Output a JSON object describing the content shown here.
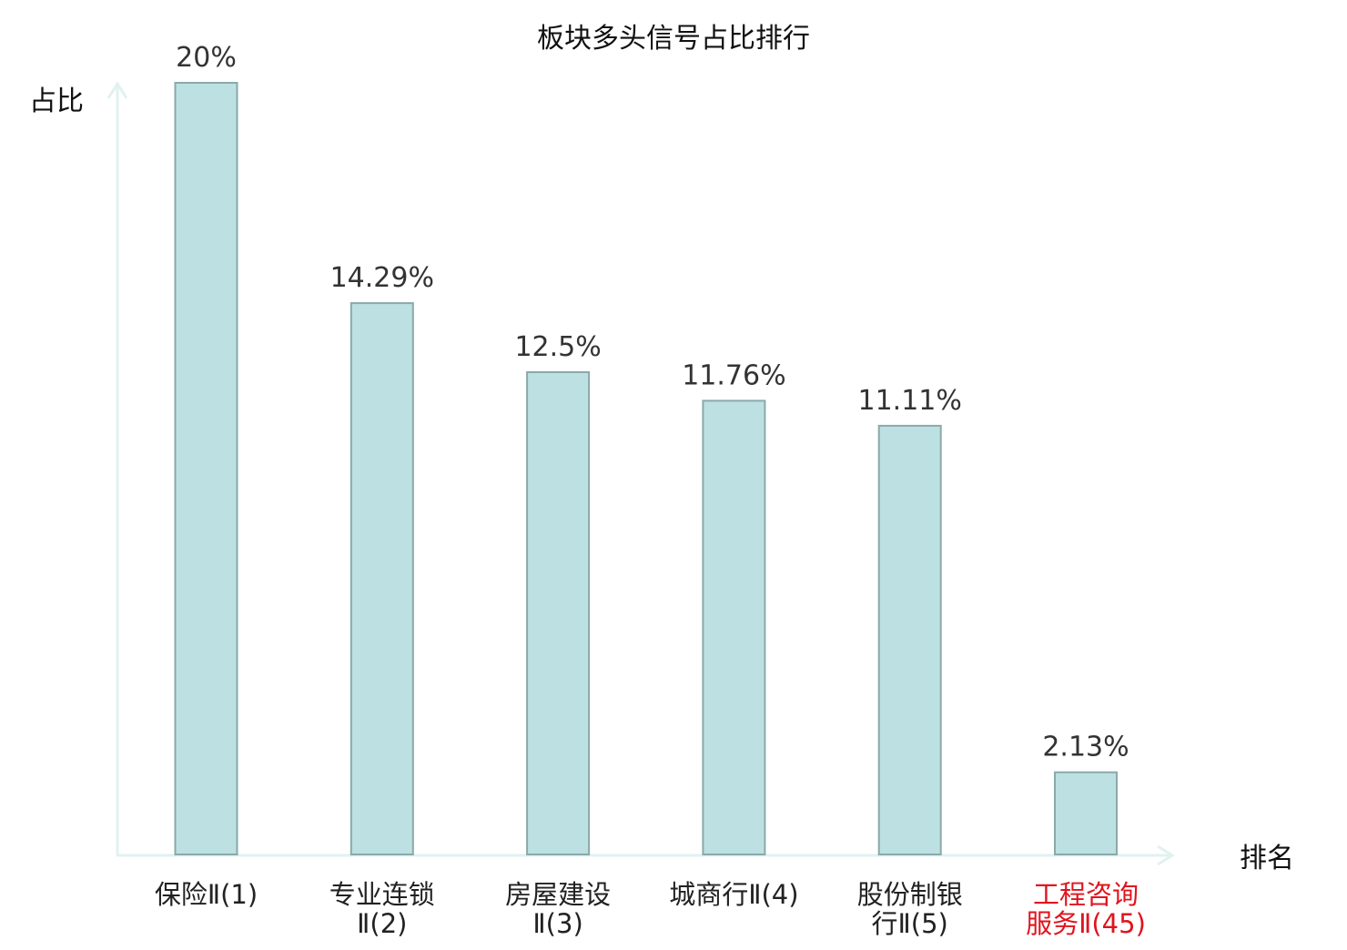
{
  "chart_data": {
    "type": "bar",
    "title": "板块多头信号占比排行",
    "ylabel": "占比",
    "xlabel": "排名",
    "ylim": [
      0,
      20
    ],
    "grid": false,
    "legend": "none",
    "categories": [
      [
        "保险Ⅱ(1)"
      ],
      [
        "专业连锁",
        "Ⅱ(2)"
      ],
      [
        "房屋建设",
        "Ⅱ(3)"
      ],
      [
        "城商行Ⅱ(4)"
      ],
      [
        "股份制银",
        "行Ⅱ(5)"
      ],
      [
        "工程咨询",
        "服务Ⅱ(45)"
      ]
    ],
    "values": [
      20,
      14.29,
      12.5,
      11.76,
      11.11,
      2.13
    ],
    "value_labels": [
      "20%",
      "14.29%",
      "12.5%",
      "11.76%",
      "11.11%",
      "2.13%"
    ],
    "highlight_index": 5
  },
  "colors": {
    "bar_fill": "#bde0e2",
    "bar_stroke": "#8aa9ab",
    "axis": "#e0f2f0",
    "text": "#333333",
    "title": "#111111",
    "highlight": "#e0141e"
  }
}
